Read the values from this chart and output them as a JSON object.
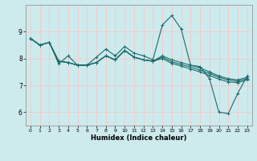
{
  "xlabel": "Humidex (Indice chaleur)",
  "background_color": "#cdeaed",
  "grid_color": "#f5c8c8",
  "line_color": "#1a6b6b",
  "x_values": [
    0,
    1,
    2,
    3,
    4,
    5,
    6,
    7,
    8,
    9,
    10,
    11,
    12,
    13,
    14,
    15,
    16,
    17,
    18,
    19,
    20,
    21,
    22,
    23
  ],
  "series": [
    [
      8.75,
      8.5,
      8.6,
      7.8,
      8.1,
      7.75,
      7.75,
      8.05,
      8.35,
      8.1,
      8.45,
      8.2,
      8.1,
      7.95,
      9.25,
      9.6,
      9.1,
      7.75,
      7.7,
      7.25,
      6.0,
      5.95,
      6.7,
      7.35
    ],
    [
      8.75,
      8.5,
      8.6,
      7.9,
      7.85,
      7.75,
      7.75,
      7.85,
      8.1,
      7.95,
      8.3,
      8.05,
      7.95,
      7.9,
      8.1,
      7.95,
      7.85,
      7.75,
      7.65,
      7.5,
      7.35,
      7.25,
      7.2,
      7.3
    ],
    [
      8.75,
      8.5,
      8.6,
      7.9,
      7.85,
      7.75,
      7.75,
      7.85,
      8.1,
      7.95,
      8.3,
      8.05,
      7.95,
      7.9,
      8.05,
      7.88,
      7.78,
      7.68,
      7.57,
      7.44,
      7.3,
      7.2,
      7.15,
      7.25
    ],
    [
      8.75,
      8.5,
      8.6,
      7.9,
      7.85,
      7.75,
      7.75,
      7.85,
      8.1,
      7.95,
      8.3,
      8.05,
      7.95,
      7.9,
      8.0,
      7.82,
      7.72,
      7.61,
      7.5,
      7.37,
      7.23,
      7.13,
      7.1,
      7.2
    ]
  ],
  "ylim": [
    5.5,
    10.0
  ],
  "xlim": [
    -0.5,
    23.5
  ],
  "yticks": [
    6,
    7,
    8,
    9
  ],
  "xticks": [
    0,
    1,
    2,
    3,
    4,
    5,
    6,
    7,
    8,
    9,
    10,
    11,
    12,
    13,
    14,
    15,
    16,
    17,
    18,
    19,
    20,
    21,
    22,
    23
  ],
  "marker": "+",
  "markersize": 3,
  "linewidth": 0.8,
  "figsize": [
    3.2,
    2.0
  ],
  "dpi": 100
}
